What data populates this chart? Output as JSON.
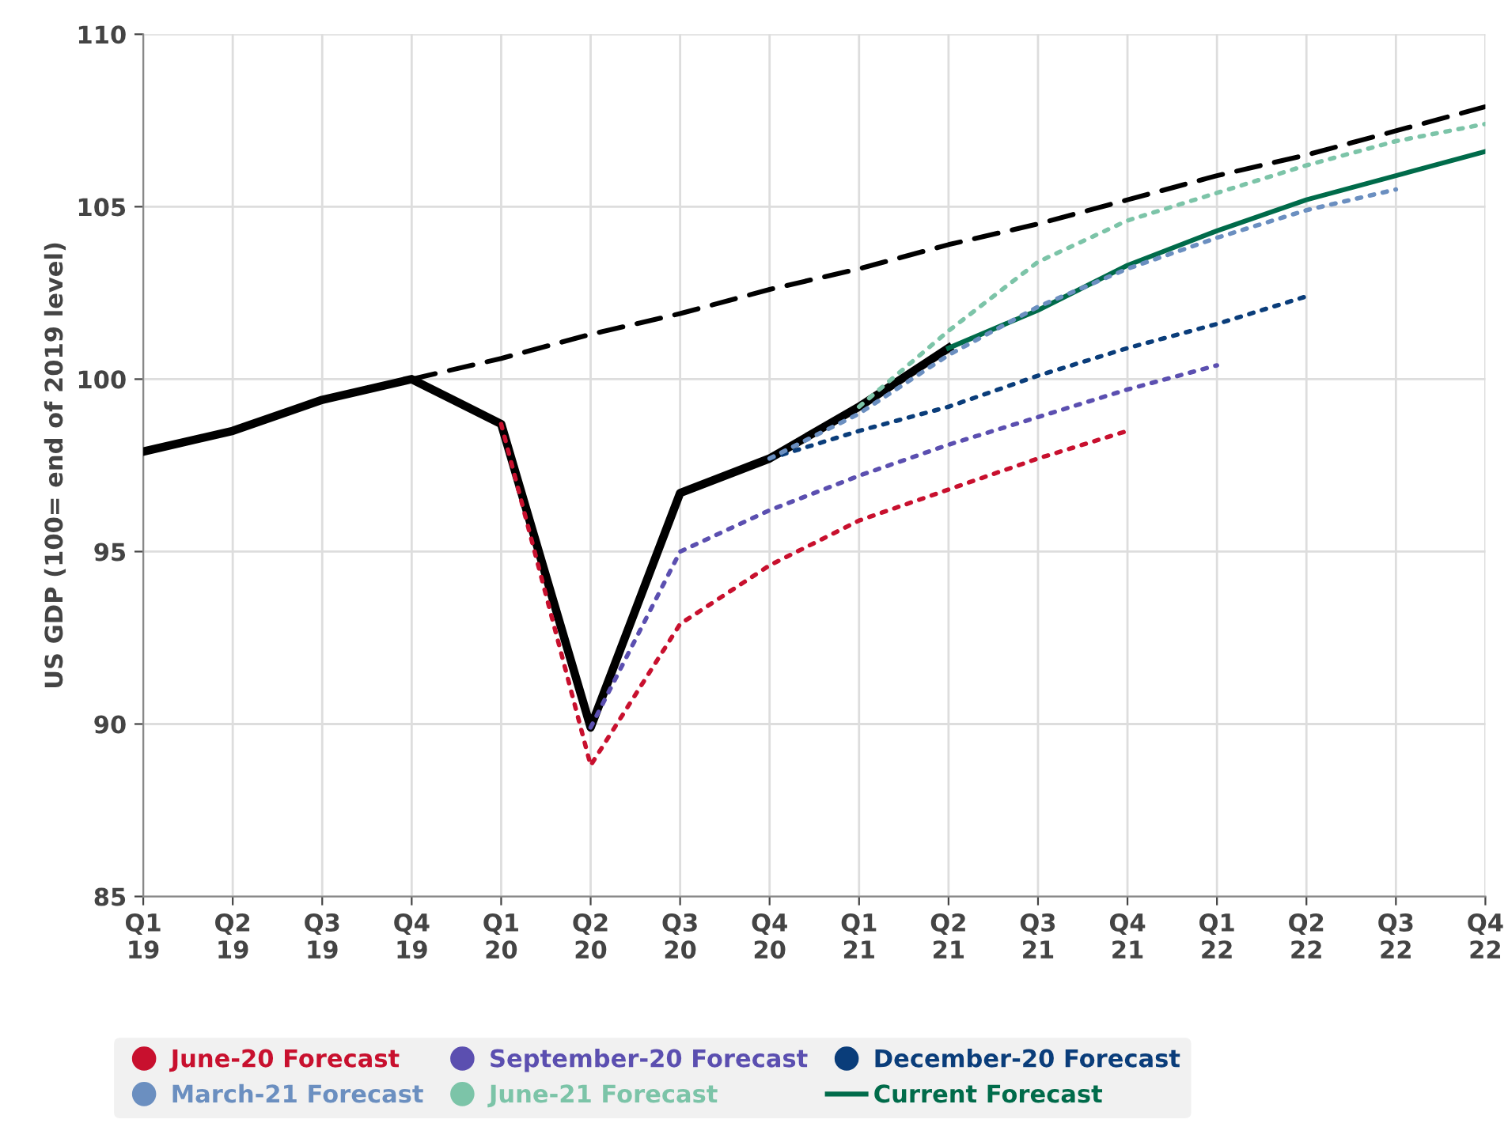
{
  "chart_data": {
    "type": "line",
    "ylabel": "US GDP (100= end of 2019 level)",
    "categories": [
      "Q1\n19",
      "Q2\n19",
      "Q3\n19",
      "Q4\n19",
      "Q1\n20",
      "Q2\n20",
      "Q3\n20",
      "Q4\n20",
      "Q1\n21",
      "Q2\n21",
      "Q3\n21",
      "Q4\n21",
      "Q1\n22",
      "Q2\n22",
      "Q3\n22",
      "Q4\n22"
    ],
    "ylim": [
      85,
      110
    ],
    "yticks": [
      85,
      90,
      95,
      100,
      105,
      110
    ],
    "grid": true,
    "legend": "bottom",
    "series": [
      {
        "name": "June-20 Forecast",
        "color": "#c8102e",
        "line_style": "dotted",
        "values": [
          null,
          null,
          null,
          null,
          98.7,
          88.8,
          92.9,
          94.6,
          95.9,
          96.8,
          97.7,
          98.5,
          null,
          null,
          null,
          null
        ]
      },
      {
        "name": "September-20 Forecast",
        "color": "#5b4fb0",
        "line_style": "dotted",
        "values": [
          null,
          null,
          null,
          null,
          null,
          89.9,
          95.0,
          96.2,
          97.2,
          98.1,
          98.9,
          99.7,
          100.4,
          null,
          null,
          null
        ]
      },
      {
        "name": "December-20 Forecast",
        "color": "#0a3d7a",
        "line_style": "dotted",
        "values": [
          null,
          null,
          null,
          null,
          null,
          null,
          null,
          97.7,
          98.5,
          99.2,
          100.1,
          100.9,
          101.6,
          102.4,
          null,
          null
        ]
      },
      {
        "name": "March-21 Forecast",
        "color": "#6b8fc0",
        "line_style": "dotted",
        "values": [
          null,
          null,
          null,
          null,
          null,
          null,
          null,
          97.7,
          99.0,
          100.7,
          102.1,
          103.2,
          104.1,
          104.9,
          105.5,
          null
        ]
      },
      {
        "name": "June-21 Forecast",
        "color": "#7cc4a8",
        "line_style": "dotted",
        "values": [
          null,
          null,
          null,
          null,
          null,
          null,
          null,
          null,
          99.2,
          101.4,
          103.4,
          104.6,
          105.4,
          106.2,
          106.9,
          107.4
        ]
      },
      {
        "color": "#000000",
        "line_style": "dashed",
        "values": [
          null,
          null,
          null,
          100.0,
          100.6,
          101.3,
          101.9,
          102.6,
          103.2,
          103.9,
          104.5,
          105.2,
          105.9,
          106.5,
          107.2,
          107.9
        ]
      },
      {
        "color": "#000000",
        "line_style": "solid",
        "values": [
          97.9,
          98.5,
          99.4,
          100.0,
          98.7,
          89.9,
          96.7,
          97.7,
          99.2,
          100.9,
          null,
          null,
          null,
          null,
          null,
          null
        ]
      },
      {
        "name": "Current Forecast",
        "color": "#006b4a",
        "line_style": "solid",
        "values": [
          null,
          null,
          null,
          null,
          null,
          null,
          null,
          null,
          null,
          100.9,
          102.0,
          103.3,
          104.3,
          105.2,
          105.9,
          106.6
        ]
      }
    ]
  }
}
